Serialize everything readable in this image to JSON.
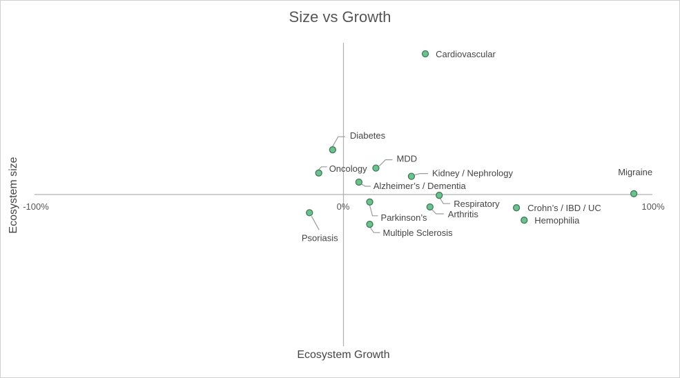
{
  "chart_data": {
    "type": "scatter",
    "title": "Size vs Growth",
    "xlabel": "Ecosystem Growth",
    "ylabel": "Ecosystem size",
    "xlim": [
      -100,
      100
    ],
    "x_ticks": [
      "-100%",
      "0%",
      "100%"
    ],
    "grid": false,
    "legend": "none",
    "marker_color": "#6cc28f",
    "marker_stroke": "#3d7a55",
    "points": [
      {
        "label": "Cardiovascular",
        "x": 26.5,
        "y": 85
      },
      {
        "label": "Diabetes",
        "x": -3.5,
        "y": 27
      },
      {
        "label": "MDD",
        "x": 10.5,
        "y": 16
      },
      {
        "label": "Oncology",
        "x": -8,
        "y": 13
      },
      {
        "label": "Kidney / Nephrology",
        "x": 22,
        "y": 11
      },
      {
        "label": "Alzheimer’s / Dementia",
        "x": 5,
        "y": 7.5
      },
      {
        "label": "Migraine",
        "x": 94,
        "y": 0.5
      },
      {
        "label": "Respiratory",
        "x": 31,
        "y": -0.5
      },
      {
        "label": "Parkinson’s",
        "x": 8.5,
        "y": -4.5
      },
      {
        "label": "Arthritis",
        "x": 28,
        "y": -7.5
      },
      {
        "label": "Crohn’s / IBD / UC",
        "x": 56,
        "y": -8
      },
      {
        "label": "Psoriasis",
        "x": -11,
        "y": -11
      },
      {
        "label": "Hemophilia",
        "x": 58.5,
        "y": -15.5
      },
      {
        "label": "Multiple Sclerosis",
        "x": 8.5,
        "y": -18
      }
    ]
  }
}
